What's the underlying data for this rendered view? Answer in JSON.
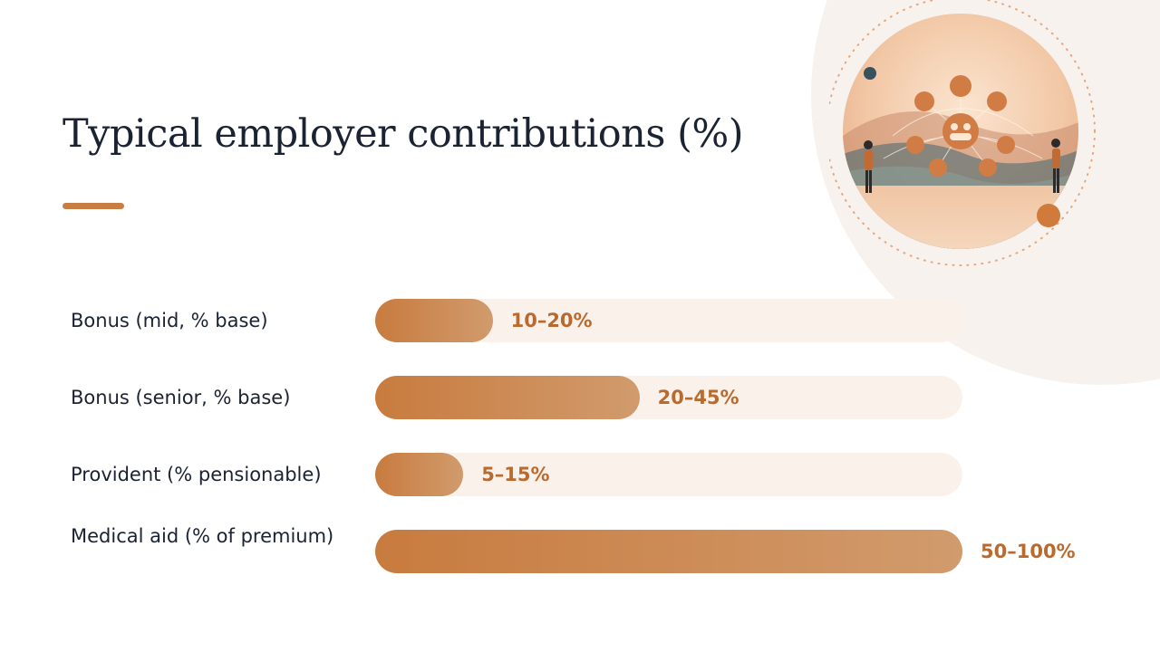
{
  "slide": {
    "title": "Typical employer contributions (%)"
  },
  "colors": {
    "accent": "#c87d42",
    "bar_start": "#c87b3e",
    "bar_end": "#d19b6d",
    "track": "#fbf1eb",
    "value_text": "#b86a2f",
    "title_text": "#1b2333",
    "background_arc": "#f8f2ee"
  },
  "illustration": {
    "icon": "benefits-network-illustration"
  },
  "chart_data": {
    "type": "bar",
    "orientation": "horizontal",
    "title": "Typical employer contributions (%)",
    "categories": [
      "Bonus (mid, % base)",
      "Bonus (senior, % base)",
      "Provident (% pensionable)",
      "Medical aid (% of premium)"
    ],
    "values": [
      20,
      45,
      15,
      100
    ],
    "ranges": [
      [
        10,
        20
      ],
      [
        20,
        45
      ],
      [
        5,
        15
      ],
      [
        50,
        100
      ]
    ],
    "value_labels": [
      "10–20%",
      "20–45%",
      "5–15%",
      "50–100%"
    ],
    "xlim": [
      0,
      100
    ],
    "grid": false,
    "legend": "none"
  }
}
